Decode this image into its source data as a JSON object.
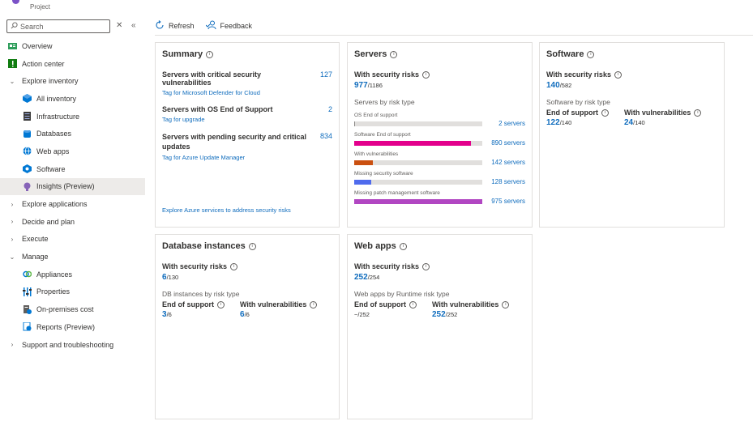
{
  "header": {
    "project_label": "Project"
  },
  "search": {
    "placeholder": "Search"
  },
  "sidebar": {
    "items": [
      {
        "label": "Overview"
      },
      {
        "label": "Action center"
      },
      {
        "label": "Explore inventory"
      },
      {
        "label": "All inventory"
      },
      {
        "label": "Infrastructure"
      },
      {
        "label": "Databases"
      },
      {
        "label": "Web apps"
      },
      {
        "label": "Software"
      },
      {
        "label": "Insights (Preview)"
      },
      {
        "label": "Explore applications"
      },
      {
        "label": "Decide and plan"
      },
      {
        "label": "Execute"
      },
      {
        "label": "Manage"
      },
      {
        "label": "Appliances"
      },
      {
        "label": "Properties"
      },
      {
        "label": "On-premises cost"
      },
      {
        "label": "Reports (Preview)"
      },
      {
        "label": "Support and troubleshooting"
      }
    ]
  },
  "toolbar": {
    "refresh_label": "Refresh",
    "feedback_label": "Feedback"
  },
  "summary": {
    "title": "Summary",
    "rows": [
      {
        "label": "Servers with critical security vulnerabilities",
        "link": "Tag for Microsoft Defender for Cloud",
        "count": "127"
      },
      {
        "label": "Servers with OS End of Support",
        "link": "Tag for upgrade",
        "count": "2"
      },
      {
        "label": "Servers with pending security and critical updates",
        "link": "Tag for Azure Update Manager",
        "count": "834"
      }
    ],
    "footer_link": "Explore Azure services to address security risks"
  },
  "servers": {
    "title": "Servers",
    "risk_label": "With security risks",
    "risk_value": "977",
    "risk_total": "/1186",
    "by_type_label": "Servers by risk type",
    "bars": [
      {
        "label": "OS End of support",
        "count": "2 servers",
        "fraction": 0.002,
        "color": "#8a8886"
      },
      {
        "label": "Software End of support",
        "count": "890 servers",
        "fraction": 0.91,
        "color": "#e3008c"
      },
      {
        "label": "With vulnerabilities",
        "count": "142 servers",
        "fraction": 0.145,
        "color": "#ca5010"
      },
      {
        "label": "Missing security software",
        "count": "128 servers",
        "fraction": 0.131,
        "color": "#4f6bed"
      },
      {
        "label": "Missing patch management software",
        "count": "975 servers",
        "fraction": 0.998,
        "color": "#b146c2"
      }
    ]
  },
  "software": {
    "title": "Software",
    "risk_label": "With security risks",
    "risk_value": "140",
    "risk_total": "/582",
    "by_type_label": "Software by risk type",
    "eos_label": "End of support",
    "eos_value": "122",
    "eos_total": "/140",
    "vuln_label": "With vulnerabilities",
    "vuln_value": "24",
    "vuln_total": "/140"
  },
  "database": {
    "title": "Database instances",
    "risk_label": "With security risks",
    "risk_value": "6",
    "risk_total": "/130",
    "by_type_label": "DB instances by risk type",
    "eos_label": "End of support",
    "eos_value": "3",
    "eos_total": "/6",
    "vuln_label": "With vulnerabilities",
    "vuln_value": "6",
    "vuln_total": "/6"
  },
  "webapps": {
    "title": "Web apps",
    "risk_label": "With security risks",
    "risk_value": "252",
    "risk_total": "/254",
    "by_type_label": "Web apps by Runtime risk type",
    "eos_label": "End of support",
    "eos_value": "~/252",
    "vuln_label": "With vulnerabilities",
    "vuln_value": "252",
    "vuln_total": "/252"
  },
  "colors": {
    "accent": "#0f6cbd",
    "selected_bg": "#edebe9",
    "border": "#e1dfdd"
  },
  "icons": [
    "search-icon",
    "clear-icon",
    "collapse-icon",
    "refresh-icon",
    "feedback-icon",
    "info-icon",
    "chevron-down-icon",
    "chevron-right-icon"
  ]
}
